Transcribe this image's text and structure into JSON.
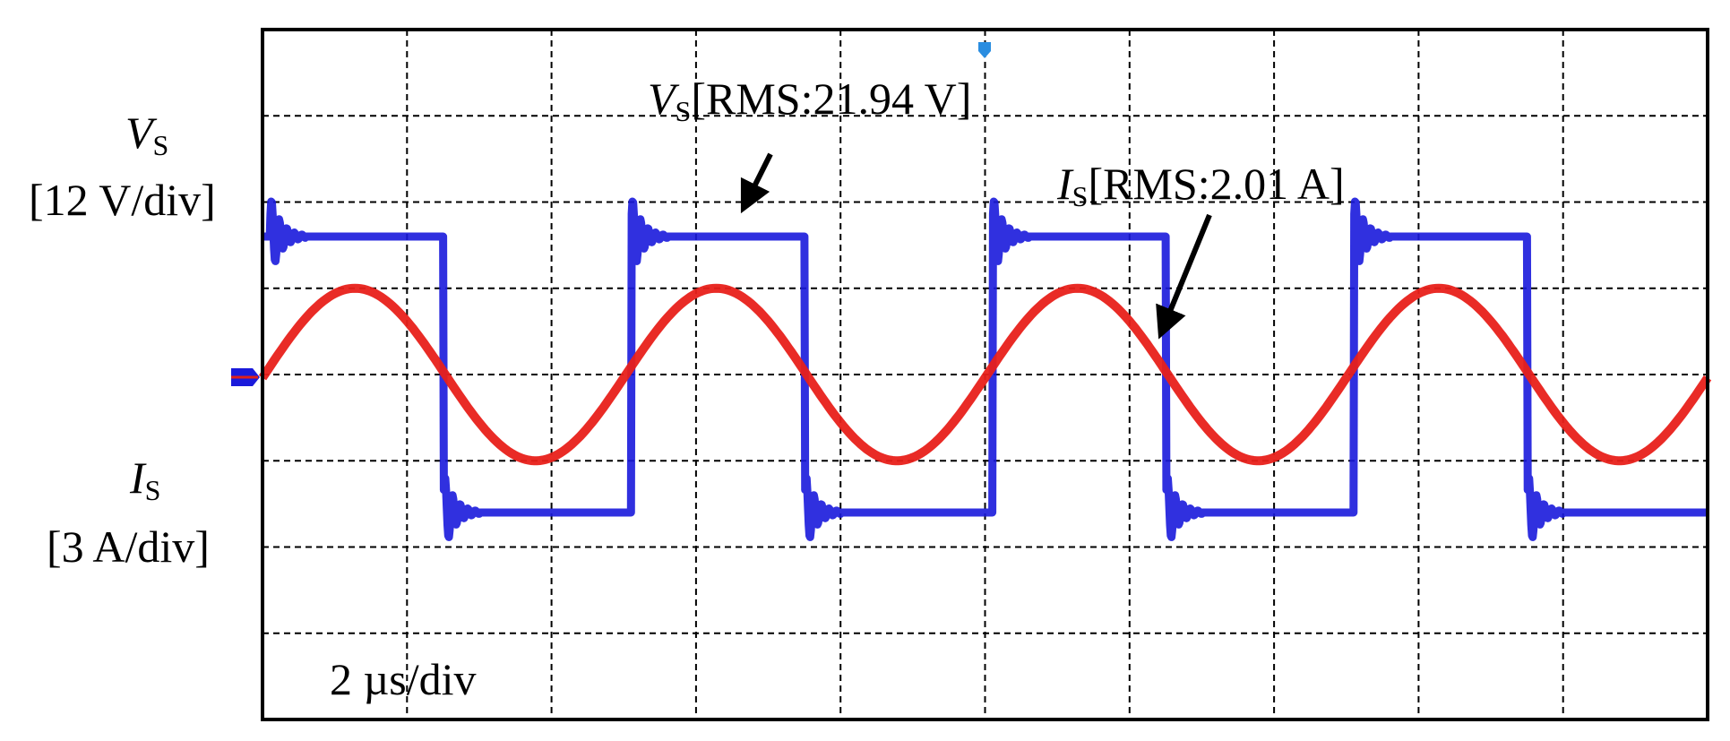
{
  "voltage_label": {
    "symbol": "V",
    "subscript": "S",
    "scale": "[12 V/div]"
  },
  "current_label": {
    "symbol": "I",
    "subscript": "S",
    "scale": "[3 A/div]"
  },
  "voltage_annotation": {
    "symbol": "V",
    "subscript": "S",
    "text": "[RMS:21.94 V]"
  },
  "current_annotation": {
    "symbol": "I",
    "subscript": "S",
    "text": "[RMS:2.01 A]"
  },
  "time_scale": "2 µs/div"
}
